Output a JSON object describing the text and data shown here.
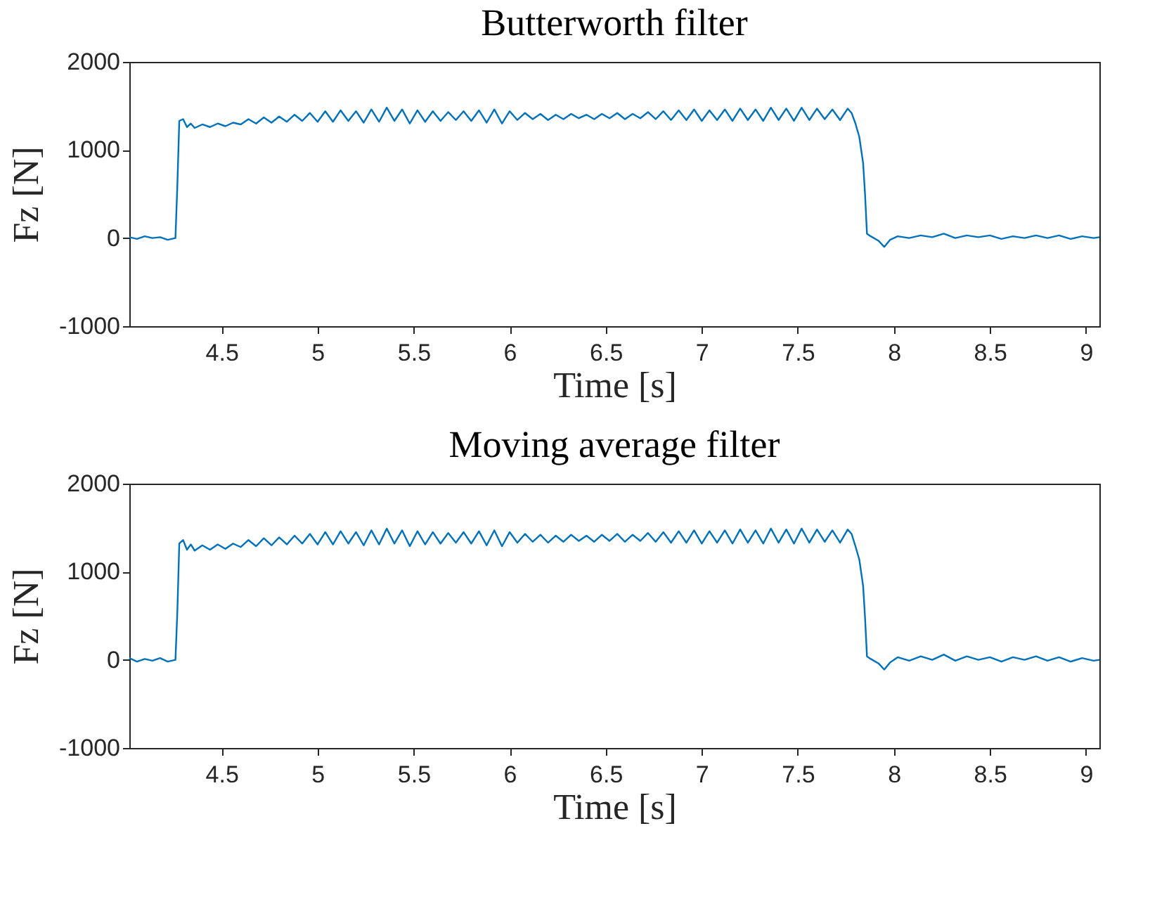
{
  "chart_data": [
    {
      "type": "line",
      "title": "Butterworth filter",
      "xlabel": "Time [s]",
      "ylabel": "Fz [N]",
      "xlim": [
        4.02,
        9.07
      ],
      "ylim": [
        -1000,
        2000
      ],
      "xticks": [
        4.5,
        5,
        5.5,
        6,
        6.5,
        7,
        7.5,
        8,
        8.5,
        9
      ],
      "yticks": [
        -1000,
        0,
        1000,
        2000
      ],
      "x": [
        4.02,
        4.06,
        4.1,
        4.14,
        4.18,
        4.22,
        4.26,
        4.27,
        4.28,
        4.3,
        4.32,
        4.34,
        4.36,
        4.4,
        4.44,
        4.48,
        4.52,
        4.56,
        4.6,
        4.64,
        4.68,
        4.72,
        4.76,
        4.8,
        4.84,
        4.88,
        4.92,
        4.96,
        5.0,
        5.04,
        5.08,
        5.12,
        5.16,
        5.2,
        5.24,
        5.28,
        5.32,
        5.36,
        5.4,
        5.44,
        5.48,
        5.52,
        5.56,
        5.6,
        5.64,
        5.68,
        5.72,
        5.76,
        5.8,
        5.84,
        5.88,
        5.92,
        5.96,
        6.0,
        6.04,
        6.08,
        6.12,
        6.16,
        6.2,
        6.24,
        6.28,
        6.32,
        6.36,
        6.4,
        6.44,
        6.48,
        6.52,
        6.56,
        6.6,
        6.64,
        6.68,
        6.72,
        6.76,
        6.8,
        6.84,
        6.88,
        6.92,
        6.96,
        7.0,
        7.04,
        7.08,
        7.12,
        7.16,
        7.2,
        7.24,
        7.28,
        7.32,
        7.36,
        7.4,
        7.44,
        7.48,
        7.52,
        7.56,
        7.6,
        7.64,
        7.68,
        7.72,
        7.76,
        7.78,
        7.8,
        7.82,
        7.84,
        7.85,
        7.86,
        7.88,
        7.92,
        7.95,
        7.98,
        8.02,
        8.08,
        8.14,
        8.2,
        8.26,
        8.32,
        8.38,
        8.44,
        8.5,
        8.56,
        8.62,
        8.68,
        8.74,
        8.8,
        8.86,
        8.92,
        8.98,
        9.04,
        9.07
      ],
      "series": [
        {
          "color": "#0072bd",
          "values": [
            10,
            -10,
            20,
            0,
            10,
            -20,
            0,
            600,
            1330,
            1350,
            1260,
            1300,
            1250,
            1290,
            1260,
            1300,
            1270,
            1310,
            1290,
            1350,
            1300,
            1370,
            1310,
            1380,
            1320,
            1400,
            1330,
            1420,
            1320,
            1440,
            1320,
            1450,
            1330,
            1440,
            1310,
            1460,
            1320,
            1480,
            1330,
            1460,
            1300,
            1450,
            1320,
            1440,
            1330,
            1430,
            1340,
            1440,
            1330,
            1450,
            1310,
            1460,
            1300,
            1440,
            1340,
            1420,
            1350,
            1410,
            1340,
            1400,
            1350,
            1410,
            1360,
            1400,
            1350,
            1410,
            1360,
            1420,
            1350,
            1410,
            1360,
            1430,
            1350,
            1440,
            1340,
            1450,
            1340,
            1460,
            1330,
            1450,
            1340,
            1460,
            1330,
            1470,
            1340,
            1460,
            1330,
            1480,
            1340,
            1470,
            1330,
            1480,
            1340,
            1470,
            1350,
            1460,
            1340,
            1470,
            1420,
            1300,
            1150,
            850,
            500,
            50,
            20,
            -30,
            -100,
            -20,
            20,
            0,
            30,
            10,
            50,
            0,
            30,
            10,
            30,
            -10,
            20,
            0,
            30,
            0,
            30,
            -10,
            20,
            0,
            10
          ]
        }
      ]
    },
    {
      "type": "line",
      "title": "Moving average filter",
      "xlabel": "Time [s]",
      "ylabel": "Fz [N]",
      "xlim": [
        4.02,
        9.07
      ],
      "ylim": [
        -1000,
        2000
      ],
      "xticks": [
        4.5,
        5,
        5.5,
        6,
        6.5,
        7,
        7.5,
        8,
        8.5,
        9
      ],
      "yticks": [
        -1000,
        0,
        1000,
        2000
      ],
      "x": [
        4.02,
        4.06,
        4.1,
        4.14,
        4.18,
        4.22,
        4.26,
        4.27,
        4.28,
        4.3,
        4.32,
        4.34,
        4.36,
        4.4,
        4.44,
        4.48,
        4.52,
        4.56,
        4.6,
        4.64,
        4.68,
        4.72,
        4.76,
        4.8,
        4.84,
        4.88,
        4.92,
        4.96,
        5.0,
        5.04,
        5.08,
        5.12,
        5.16,
        5.2,
        5.24,
        5.28,
        5.32,
        5.36,
        5.4,
        5.44,
        5.48,
        5.52,
        5.56,
        5.6,
        5.64,
        5.68,
        5.72,
        5.76,
        5.8,
        5.84,
        5.88,
        5.92,
        5.96,
        6.0,
        6.04,
        6.08,
        6.12,
        6.16,
        6.2,
        6.24,
        6.28,
        6.32,
        6.36,
        6.4,
        6.44,
        6.48,
        6.52,
        6.56,
        6.6,
        6.64,
        6.68,
        6.72,
        6.76,
        6.8,
        6.84,
        6.88,
        6.92,
        6.96,
        7.0,
        7.04,
        7.08,
        7.12,
        7.16,
        7.2,
        7.24,
        7.28,
        7.32,
        7.36,
        7.4,
        7.44,
        7.48,
        7.52,
        7.56,
        7.6,
        7.64,
        7.68,
        7.72,
        7.76,
        7.78,
        7.8,
        7.82,
        7.84,
        7.85,
        7.86,
        7.88,
        7.92,
        7.95,
        7.98,
        8.02,
        8.08,
        8.14,
        8.2,
        8.26,
        8.32,
        8.38,
        8.44,
        8.5,
        8.56,
        8.62,
        8.68,
        8.74,
        8.8,
        8.86,
        8.92,
        8.98,
        9.04,
        9.07
      ],
      "series": [
        {
          "color": "#0072bd",
          "values": [
            20,
            -20,
            10,
            -10,
            20,
            -20,
            0,
            550,
            1320,
            1360,
            1250,
            1310,
            1240,
            1300,
            1250,
            1310,
            1260,
            1320,
            1280,
            1360,
            1290,
            1380,
            1300,
            1390,
            1310,
            1410,
            1320,
            1430,
            1310,
            1450,
            1310,
            1460,
            1320,
            1450,
            1300,
            1470,
            1310,
            1490,
            1320,
            1470,
            1290,
            1460,
            1310,
            1450,
            1320,
            1440,
            1330,
            1450,
            1320,
            1460,
            1300,
            1470,
            1290,
            1450,
            1330,
            1430,
            1340,
            1420,
            1330,
            1410,
            1340,
            1420,
            1350,
            1410,
            1340,
            1420,
            1350,
            1430,
            1340,
            1420,
            1350,
            1440,
            1340,
            1450,
            1330,
            1460,
            1330,
            1470,
            1320,
            1460,
            1330,
            1470,
            1320,
            1480,
            1330,
            1470,
            1320,
            1490,
            1330,
            1480,
            1320,
            1490,
            1330,
            1480,
            1340,
            1470,
            1330,
            1480,
            1430,
            1290,
            1140,
            840,
            480,
            40,
            10,
            -40,
            -110,
            -30,
            30,
            -10,
            40,
            0,
            60,
            -10,
            40,
            0,
            30,
            -20,
            30,
            0,
            40,
            -10,
            30,
            -20,
            20,
            -10,
            0
          ]
        }
      ]
    }
  ]
}
